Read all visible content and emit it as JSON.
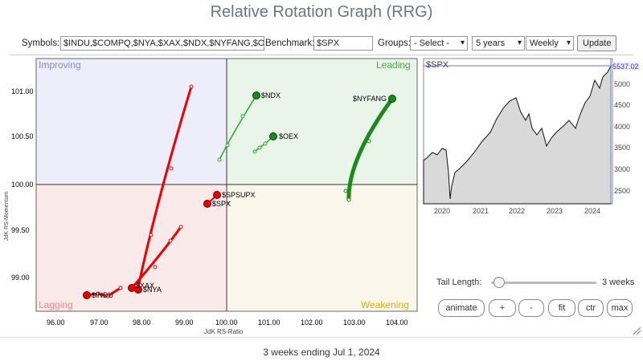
{
  "title": "Relative Rotation Graph (RRG)",
  "toolbar": {
    "symbols_label": "Symbols:",
    "symbols_value": "$INDU,$COMPQ,$NYA,$XAX,$NDX,$NYFANG,$O",
    "benchmark_label": "Benchmark:",
    "benchmark_value": "$SPX",
    "groups_label": "Groups:",
    "groups_value": "- Select -",
    "period_value": "5 years",
    "interval_value": "Weekly",
    "update_label": "Update"
  },
  "rrg": {
    "quadrants": {
      "improving": "Improving",
      "leading": "Leading",
      "lagging": "Lagging",
      "weakening": "Weakening"
    },
    "xlabel": "JdK RS-Ratio",
    "ylabel": "JdK RS-Momentum",
    "x_ticks": [
      "96.00",
      "97.00",
      "98.00",
      "99.00",
      "100.00",
      "101.00",
      "102.00",
      "103.00",
      "104.00"
    ],
    "y_ticks": [
      "101.00",
      "100.50",
      "100.00",
      "99.50",
      "99.00"
    ],
    "colors": {
      "improving": "#eeeefa",
      "leading": "#eaf5ea",
      "lagging": "#fbeaea",
      "weakening": "#faf7ea"
    },
    "symbols": {
      "ndx": "$NDX",
      "oex": "$OEX",
      "nyfang": "$NYFANG",
      "spsupx": "$SPSUPX",
      "spx_stack": "$SPX",
      "xax": "$XAX",
      "nya": "$NYA",
      "indu": "$INDU"
    }
  },
  "mini_chart": {
    "label": "$SPX",
    "last_value": "5537.02",
    "y_ticks": [
      "5000",
      "4500",
      "4000",
      "3500",
      "3000",
      "2500"
    ],
    "x_ticks": [
      "2020",
      "2021",
      "2022",
      "2023",
      "2024"
    ]
  },
  "controls": {
    "tail_label": "Tail Length:",
    "tail_value": "3 weeks",
    "buttons": [
      "animate",
      "+",
      "-",
      "fit",
      "ctr",
      "max"
    ]
  },
  "footer": "3 weeks ending Jul 1, 2024"
}
